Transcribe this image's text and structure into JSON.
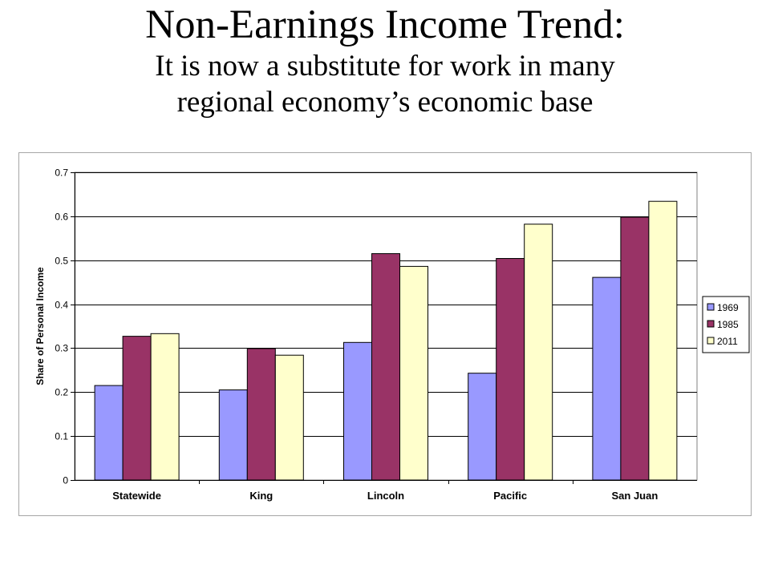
{
  "slide": {
    "title": "Non-Earnings Income Trend:",
    "subtitle_line1": "It is now a substitute for work in many",
    "subtitle_line2": "regional economy’s economic base"
  },
  "chart_data": {
    "type": "bar",
    "categories": [
      "Statewide",
      "King",
      "Lincoln",
      "Pacific",
      "San Juan"
    ],
    "series": [
      {
        "name": "1969",
        "values": [
          0.215,
          0.205,
          0.313,
          0.243,
          0.461
        ],
        "color": "#9999ff"
      },
      {
        "name": "1985",
        "values": [
          0.327,
          0.299,
          0.515,
          0.504,
          0.598
        ],
        "color": "#993366"
      },
      {
        "name": "2011",
        "values": [
          0.333,
          0.284,
          0.486,
          0.582,
          0.634
        ],
        "color": "#ffffcc"
      }
    ],
    "ylabel": "Share of Personal Income",
    "ylim": [
      0,
      0.7
    ],
    "yticks": [
      "0",
      "0.1",
      "0.2",
      "0.3",
      "0.4",
      "0.5",
      "0.6",
      "0.7"
    ],
    "grid": true,
    "legend": "right"
  }
}
